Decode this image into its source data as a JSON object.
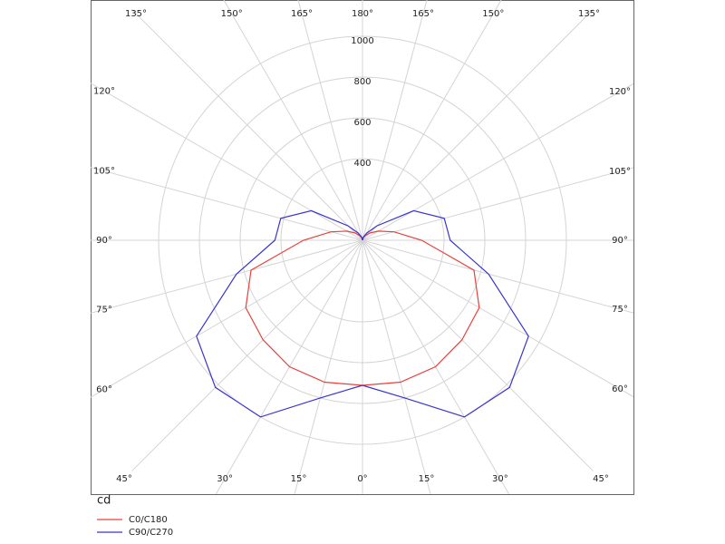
{
  "chart_data": {
    "type": "polar",
    "unit_label": "cd",
    "x": [
      0,
      15,
      30,
      45,
      60,
      75,
      90,
      105,
      120,
      135,
      150,
      165,
      180
    ],
    "series": [
      {
        "name": "C0/C180",
        "color": "#e8413c",
        "values": [
          711,
          720,
          716,
          690,
          661,
          566,
          290,
          160,
          90,
          50,
          25,
          10,
          0
        ]
      },
      {
        "name": "C90/C270",
        "color": "#3a35d0",
        "values": [
          711,
          800,
          1000,
          1020,
          940,
          640,
          430,
          415,
          290,
          100,
          40,
          15,
          0
        ]
      }
    ],
    "rlim": [
      0,
      1600
    ],
    "rticks": [
      400,
      600,
      800,
      1000
    ],
    "angle_ticks": [
      {
        "value": 0,
        "label": "0°"
      },
      {
        "value": 15,
        "label": "15°"
      },
      {
        "value": 30,
        "label": "30°"
      },
      {
        "value": 45,
        "label": "45°"
      },
      {
        "value": 60,
        "label": "60°"
      },
      {
        "value": 75,
        "label": "75°"
      },
      {
        "value": 90,
        "label": "90°"
      },
      {
        "value": 105,
        "label": "105°"
      },
      {
        "value": 120,
        "label": "120°"
      },
      {
        "value": 135,
        "label": "135°"
      },
      {
        "value": 150,
        "label": "150°"
      },
      {
        "value": 165,
        "label": "165°"
      },
      {
        "value": 180,
        "label": "180°"
      }
    ],
    "grid": true
  }
}
